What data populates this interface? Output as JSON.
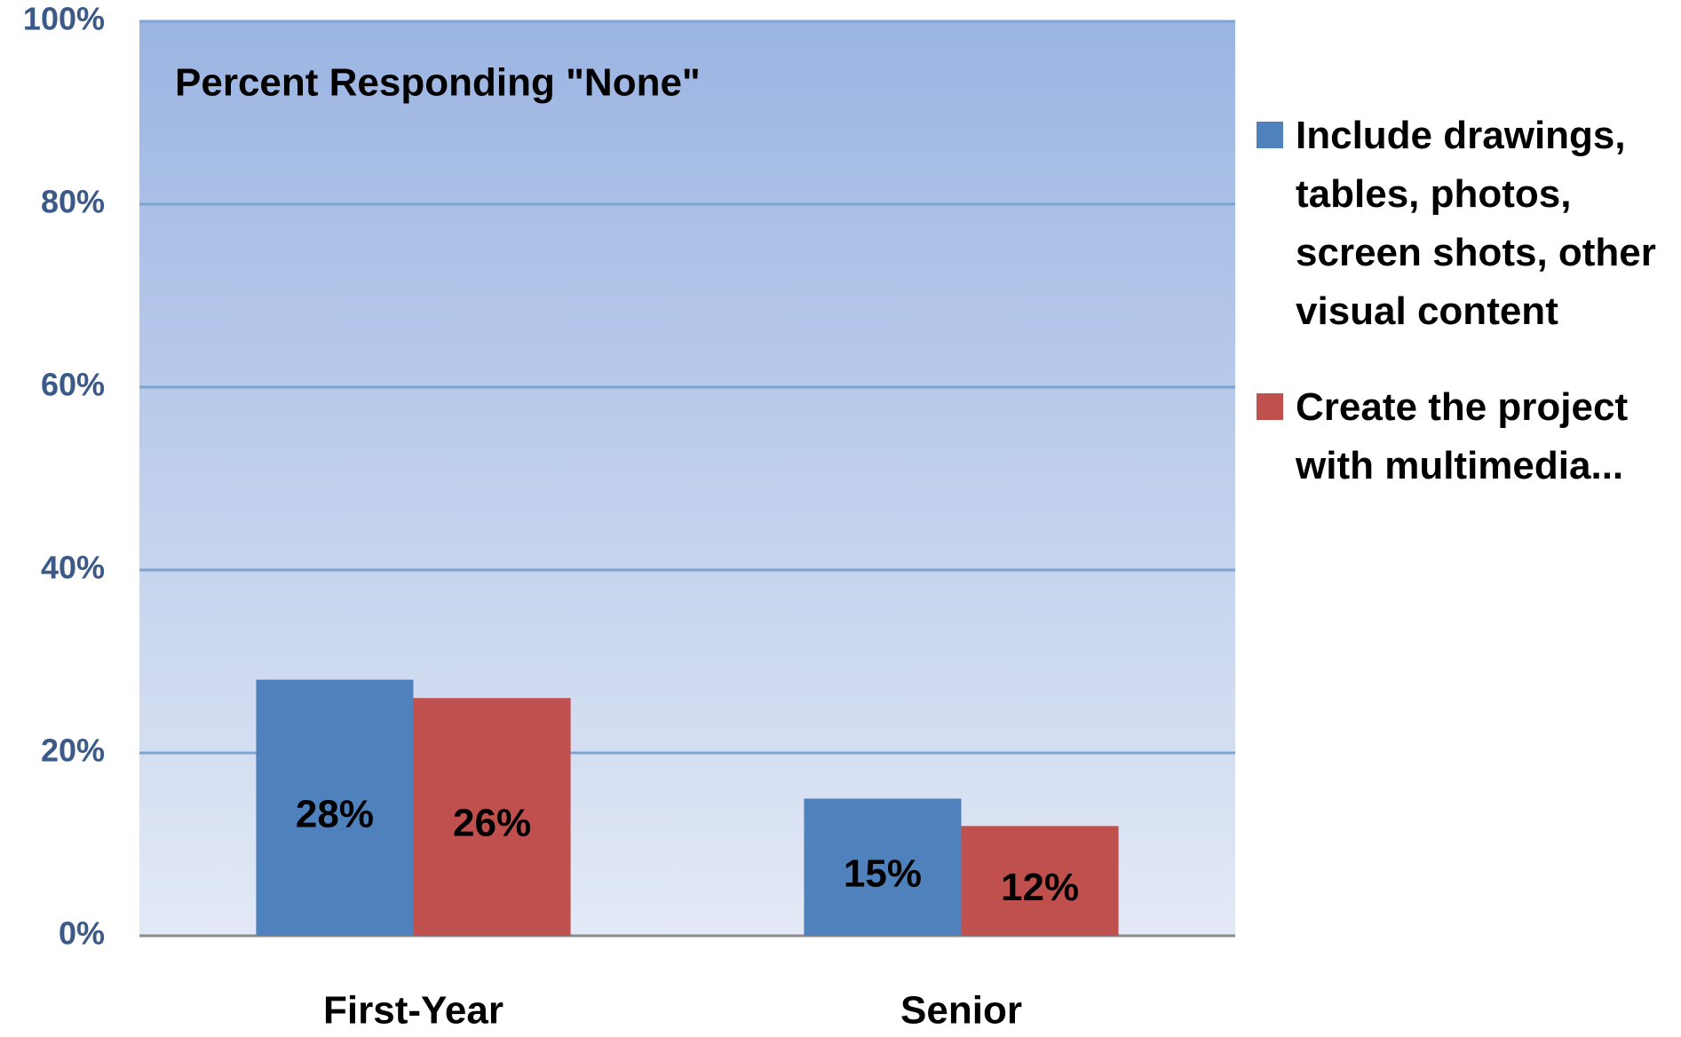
{
  "chart_data": {
    "type": "bar",
    "title": "Percent Responding \"None\"",
    "categories": [
      "First-Year",
      "Senior"
    ],
    "series": [
      {
        "name": "Include drawings, tables, photos, screen shots, other visual content",
        "color": "#4f81bd",
        "values": [
          28,
          15
        ],
        "value_labels": [
          "28%",
          "15%"
        ]
      },
      {
        "name": "Create the project with multimedia...",
        "color": "#c0504d",
        "values": [
          26,
          12
        ],
        "value_labels": [
          "26%",
          "12%"
        ]
      }
    ],
    "ylim": [
      0,
      100
    ],
    "yticks": [
      {
        "value": 0,
        "label": "0%"
      },
      {
        "value": 20,
        "label": "20%"
      },
      {
        "value": 40,
        "label": "40%"
      },
      {
        "value": 60,
        "label": "60%"
      },
      {
        "value": 80,
        "label": "80%"
      },
      {
        "value": 100,
        "label": "100%"
      }
    ],
    "grid": true,
    "legend": "right"
  }
}
